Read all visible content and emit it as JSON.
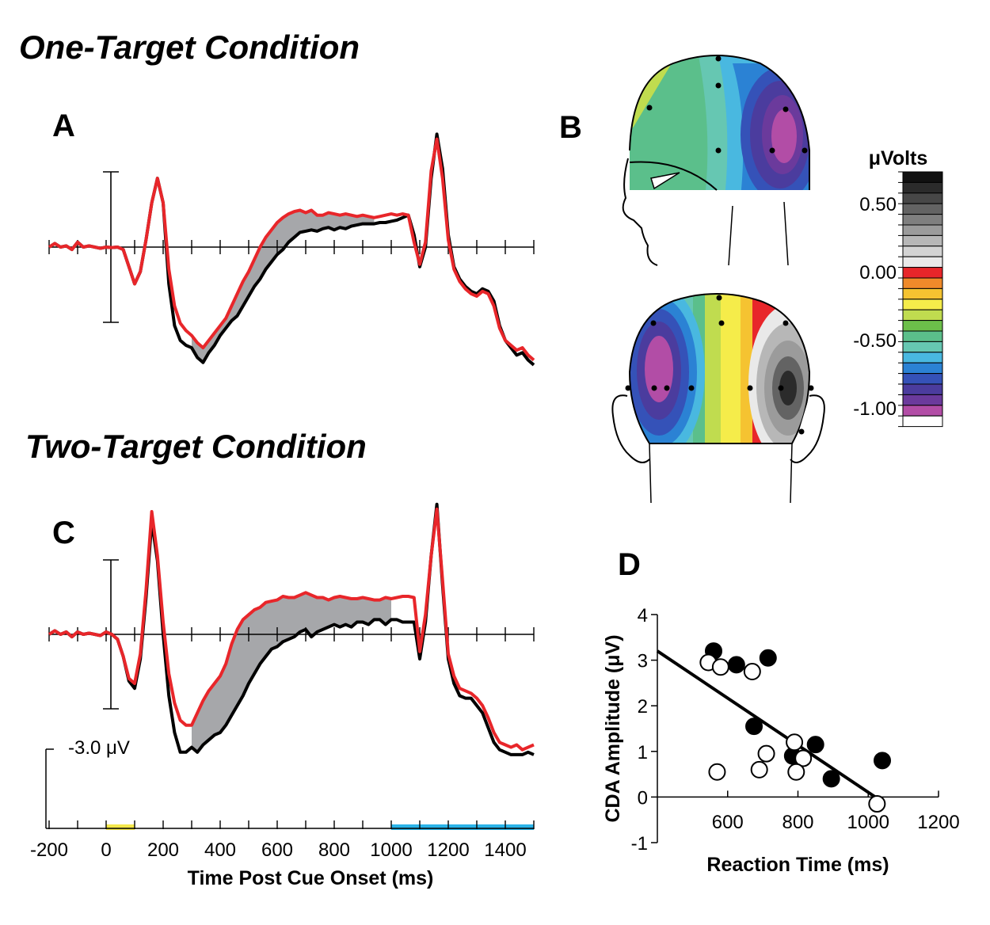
{
  "titles": {
    "one_target": "One-Target Condition",
    "two_target": "Two-Target Condition"
  },
  "panels": {
    "a": "A",
    "b": "B",
    "c": "C",
    "d": "D"
  },
  "scale_bar_label": "-3.0 μV",
  "colorbar": {
    "title": "μVolts",
    "tick_labels": [
      "0.50",
      "0.00",
      "-0.50",
      "-1.00"
    ],
    "tick_values": [
      0.5,
      0.0,
      -0.5,
      -1.0
    ],
    "colors": [
      "#111111",
      "#2b2b2b",
      "#474747",
      "#636363",
      "#7f7f7f",
      "#9b9b9b",
      "#b7b7b7",
      "#d3d3d3",
      "#e9e9e9",
      "#e8262a",
      "#f08a2a",
      "#f5c331",
      "#f5ec4a",
      "#c0dc4f",
      "#6cbf4a",
      "#5bbf8b",
      "#66c7b2",
      "#49b8e0",
      "#2b82d4",
      "#3552b8",
      "#4b3c9e",
      "#6b3a9c",
      "#b24da6",
      "#ffffff"
    ]
  },
  "time_axis": {
    "title": "Time Post Cue Onset (ms)",
    "tick_labels": [
      "-200",
      "0",
      "200",
      "400",
      "600",
      "800",
      "1000",
      "1200",
      "1400"
    ],
    "cue_window_ms": [
      0,
      100
    ],
    "cue_color": "#f5e84b",
    "test_window_ms": [
      1000,
      1500
    ],
    "test_color": "#2ab3e8"
  },
  "chart_data": [
    {
      "panel": "A",
      "type": "line",
      "x_range_ms": [
        -200,
        1500
      ],
      "y_range_uV": [
        -3.0,
        3.0
      ],
      "series_colors": [
        "#000000",
        "#e8262a"
      ],
      "series": [
        {
          "x": [
            -200,
            -180,
            -160,
            -140,
            -120,
            -100,
            -80,
            -60,
            -40,
            -20,
            0,
            20,
            40,
            60,
            80,
            100,
            120,
            140,
            160,
            180,
            200,
            220,
            240,
            260,
            280,
            300,
            320,
            340,
            360,
            380,
            400,
            420,
            440,
            460,
            480,
            500,
            520,
            540,
            560,
            580,
            600,
            620,
            640,
            650,
            660,
            680,
            700,
            720,
            740,
            760,
            780,
            800,
            820,
            840,
            860,
            880,
            900,
            920,
            940,
            960,
            980,
            1000,
            1020,
            1040,
            1060,
            1080,
            1100,
            1120,
            1140,
            1160,
            1180,
            1200,
            1220,
            1240,
            1260,
            1280,
            1300,
            1320,
            1340,
            1360,
            1380,
            1400,
            1420,
            1440,
            1460,
            1480,
            1500
          ],
          "values": [
            0.0,
            0.15,
            0.0,
            0.05,
            -0.1,
            0.2,
            0.0,
            0.05,
            0.0,
            -0.05,
            0.0,
            -0.02,
            0.0,
            -0.1,
            -0.8,
            -1.5,
            -1.0,
            0.3,
            1.8,
            2.8,
            1.8,
            -1.5,
            -3.2,
            -3.8,
            -4.0,
            -4.1,
            -4.5,
            -4.7,
            -4.3,
            -4.0,
            -3.6,
            -3.3,
            -3.0,
            -2.8,
            -2.4,
            -2.0,
            -1.6,
            -1.3,
            -0.9,
            -0.6,
            -0.3,
            -0.1,
            0.2,
            0.3,
            0.4,
            0.6,
            0.65,
            0.7,
            0.65,
            0.75,
            0.8,
            0.7,
            0.8,
            0.75,
            0.85,
            0.9,
            0.95,
            0.95,
            0.95,
            1.0,
            1.0,
            1.05,
            1.1,
            1.2,
            1.3,
            0.5,
            -0.8,
            0.0,
            2.8,
            4.6,
            3.2,
            0.5,
            -0.8,
            -1.3,
            -1.6,
            -1.8,
            -1.9,
            -1.7,
            -1.8,
            -2.2,
            -3.2,
            -3.8,
            -4.1,
            -4.4,
            -4.3,
            -4.6,
            -4.8
          ]
        },
        {
          "x": [
            -200,
            -180,
            -160,
            -140,
            -120,
            -100,
            -80,
            -60,
            -40,
            -20,
            0,
            20,
            40,
            60,
            80,
            100,
            120,
            140,
            160,
            180,
            200,
            220,
            240,
            260,
            280,
            300,
            320,
            340,
            360,
            380,
            400,
            420,
            440,
            460,
            480,
            500,
            520,
            540,
            560,
            580,
            600,
            620,
            640,
            650,
            660,
            680,
            700,
            720,
            740,
            760,
            780,
            800,
            820,
            840,
            860,
            880,
            900,
            920,
            940,
            960,
            980,
            1000,
            1020,
            1040,
            1060,
            1080,
            1100,
            1120,
            1140,
            1160,
            1180,
            1200,
            1220,
            1240,
            1260,
            1280,
            1300,
            1320,
            1340,
            1360,
            1380,
            1400,
            1420,
            1440,
            1460,
            1480,
            1500
          ],
          "values": [
            0.0,
            0.15,
            0.0,
            0.05,
            -0.1,
            0.2,
            0.0,
            0.05,
            0.0,
            -0.05,
            0.0,
            -0.02,
            0.0,
            -0.1,
            -0.8,
            -1.5,
            -1.0,
            0.3,
            1.8,
            2.8,
            1.8,
            -0.9,
            -2.4,
            -3.1,
            -3.4,
            -3.6,
            -3.9,
            -4.1,
            -3.8,
            -3.5,
            -3.2,
            -2.9,
            -2.4,
            -1.9,
            -1.4,
            -1.0,
            -0.5,
            0.0,
            0.4,
            0.7,
            1.0,
            1.2,
            1.35,
            1.4,
            1.45,
            1.5,
            1.4,
            1.5,
            1.3,
            1.3,
            1.4,
            1.35,
            1.3,
            1.35,
            1.3,
            1.25,
            1.3,
            1.25,
            1.2,
            1.25,
            1.3,
            1.35,
            1.3,
            1.35,
            1.3,
            0.2,
            -0.7,
            0.2,
            3.1,
            4.4,
            2.8,
            0.3,
            -0.9,
            -1.4,
            -1.7,
            -1.9,
            -2.0,
            -1.8,
            -1.9,
            -2.4,
            -3.3,
            -3.8,
            -4.0,
            -4.2,
            -4.1,
            -4.4,
            -4.6
          ]
        }
      ],
      "difference_shading_ms": [
        300,
        950
      ]
    },
    {
      "panel": "C",
      "type": "line",
      "x_range_ms": [
        -200,
        1500
      ],
      "y_range_uV": [
        -3.0,
        3.0
      ],
      "series_colors": [
        "#000000",
        "#e8262a"
      ],
      "series": [
        {
          "x": [
            -200,
            -180,
            -160,
            -140,
            -120,
            -100,
            -80,
            -60,
            -40,
            -20,
            0,
            20,
            40,
            60,
            80,
            100,
            120,
            140,
            160,
            180,
            200,
            220,
            240,
            260,
            280,
            300,
            320,
            340,
            360,
            380,
            400,
            420,
            440,
            460,
            480,
            500,
            520,
            540,
            560,
            580,
            600,
            620,
            640,
            660,
            680,
            700,
            720,
            740,
            760,
            780,
            800,
            820,
            840,
            860,
            880,
            900,
            920,
            940,
            960,
            980,
            1000,
            1020,
            1040,
            1060,
            1080,
            1100,
            1120,
            1140,
            1160,
            1180,
            1200,
            1220,
            1240,
            1260,
            1280,
            1300,
            1320,
            1340,
            1360,
            1380,
            1400,
            1420,
            1440,
            1460,
            1480,
            1500
          ],
          "values": [
            0.0,
            0.15,
            0.0,
            0.1,
            -0.1,
            0.1,
            0.0,
            0.05,
            0.0,
            -0.05,
            0.1,
            0.0,
            -0.2,
            -0.9,
            -1.9,
            -2.2,
            -1.0,
            1.5,
            4.6,
            3.0,
            0.0,
            -2.5,
            -4.0,
            -4.8,
            -4.8,
            -4.6,
            -4.8,
            -4.5,
            -4.3,
            -4.1,
            -4.0,
            -3.7,
            -3.3,
            -2.9,
            -2.5,
            -2.0,
            -1.6,
            -1.2,
            -0.9,
            -0.6,
            -0.5,
            -0.3,
            -0.2,
            -0.1,
            0.1,
            0.2,
            -0.1,
            0.1,
            0.2,
            0.3,
            0.4,
            0.3,
            0.4,
            0.3,
            0.5,
            0.5,
            0.4,
            0.6,
            0.6,
            0.4,
            0.6,
            0.6,
            0.5,
            0.5,
            0.5,
            -1.0,
            0.5,
            3.2,
            5.3,
            2.0,
            -1.0,
            -2.0,
            -2.5,
            -2.6,
            -2.6,
            -2.9,
            -3.2,
            -3.8,
            -4.4,
            -4.7,
            -4.8,
            -4.9,
            -4.9,
            -4.9,
            -4.8,
            -4.9
          ]
        },
        {
          "x": [
            -200,
            -180,
            -160,
            -140,
            -120,
            -100,
            -80,
            -60,
            -40,
            -20,
            0,
            20,
            40,
            60,
            80,
            100,
            120,
            140,
            160,
            180,
            200,
            220,
            240,
            260,
            280,
            300,
            320,
            340,
            360,
            380,
            400,
            420,
            440,
            460,
            480,
            500,
            520,
            540,
            560,
            580,
            600,
            620,
            640,
            660,
            680,
            700,
            720,
            740,
            760,
            780,
            800,
            820,
            840,
            860,
            880,
            900,
            920,
            940,
            960,
            980,
            1000,
            1020,
            1040,
            1060,
            1080,
            1100,
            1120,
            1140,
            1160,
            1180,
            1200,
            1220,
            1240,
            1260,
            1280,
            1300,
            1320,
            1340,
            1360,
            1380,
            1400,
            1420,
            1440,
            1460,
            1480,
            1500
          ],
          "values": [
            0.0,
            0.15,
            0.0,
            0.1,
            -0.1,
            0.1,
            0.0,
            0.05,
            0.0,
            -0.05,
            0.1,
            0.0,
            -0.2,
            -0.9,
            -1.8,
            -2.0,
            -0.8,
            1.8,
            5.0,
            3.2,
            0.5,
            -1.6,
            -2.8,
            -3.5,
            -3.7,
            -3.7,
            -3.2,
            -2.7,
            -2.3,
            -2.0,
            -1.7,
            -1.2,
            -0.4,
            0.2,
            0.6,
            0.8,
            1.0,
            1.1,
            1.3,
            1.35,
            1.4,
            1.55,
            1.5,
            1.5,
            1.6,
            1.7,
            1.6,
            1.5,
            1.5,
            1.4,
            1.5,
            1.55,
            1.5,
            1.45,
            1.45,
            1.5,
            1.45,
            1.4,
            1.4,
            1.5,
            1.45,
            1.5,
            1.55,
            1.55,
            1.5,
            -0.7,
            0.8,
            3.2,
            5.1,
            2.2,
            -0.8,
            -1.7,
            -2.2,
            -2.3,
            -2.4,
            -2.6,
            -2.9,
            -3.4,
            -4.0,
            -4.4,
            -4.5,
            -4.6,
            -4.5,
            -4.7,
            -4.6,
            -4.5
          ]
        }
      ],
      "difference_shading_ms": [
        300,
        1000
      ]
    },
    {
      "panel": "D",
      "type": "scatter",
      "xlabel": "Reaction Time (ms)",
      "ylabel": "CDA Amplitude (μV)",
      "x_range": [
        400,
        1200
      ],
      "y_range": [
        -1,
        4
      ],
      "x_ticks": [
        600,
        800,
        1000,
        1200
      ],
      "y_ticks": [
        -1,
        0,
        1,
        2,
        3,
        4
      ],
      "filled_points": {
        "x": [
          560,
          625,
          715,
          675,
          785,
          850,
          895,
          1040
        ],
        "y": [
          3.2,
          2.9,
          3.05,
          1.55,
          0.9,
          1.15,
          0.4,
          0.8
        ]
      },
      "open_points": {
        "x": [
          545,
          580,
          670,
          710,
          690,
          790,
          815,
          795,
          570,
          1025
        ],
        "y": [
          2.95,
          2.85,
          2.75,
          0.95,
          0.6,
          1.2,
          0.85,
          0.55,
          0.55,
          -0.15
        ]
      },
      "regression_line": {
        "x": [
          400,
          1020
        ],
        "y": [
          3.2,
          0.0
        ]
      }
    }
  ]
}
